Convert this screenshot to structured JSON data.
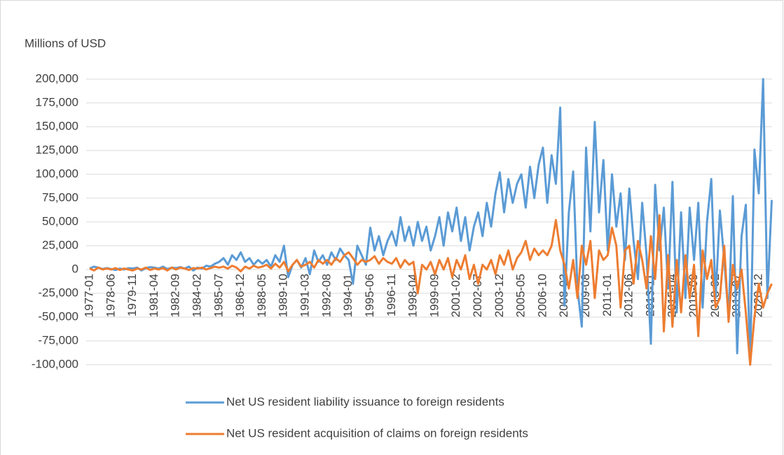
{
  "chart_data": {
    "type": "line",
    "y_axis_label": "Millions of USD",
    "categories": [
      "1977-01",
      null,
      null,
      null,
      null,
      "1978-06",
      null,
      null,
      null,
      null,
      "1979-11",
      null,
      null,
      null,
      null,
      "1981-04",
      null,
      null,
      null,
      null,
      "1982-09",
      null,
      null,
      null,
      null,
      "1984-02",
      null,
      null,
      null,
      null,
      "1985-07",
      null,
      null,
      null,
      null,
      "1986-12",
      null,
      null,
      null,
      null,
      "1988-05",
      null,
      null,
      null,
      null,
      "1989-10",
      null,
      null,
      null,
      null,
      "1991-03",
      null,
      null,
      null,
      null,
      "1992-08",
      null,
      null,
      null,
      null,
      "1994-01",
      null,
      null,
      null,
      null,
      "1995-06",
      null,
      null,
      null,
      null,
      "1996-11",
      null,
      null,
      null,
      null,
      "1998-04",
      null,
      null,
      null,
      null,
      "1999-09",
      null,
      null,
      null,
      null,
      "2001-02",
      null,
      null,
      null,
      null,
      "2002-07",
      null,
      null,
      null,
      null,
      "2003-12",
      null,
      null,
      null,
      null,
      "2005-05",
      null,
      null,
      null,
      null,
      "2006-10",
      null,
      null,
      null,
      null,
      "2008-03",
      null,
      null,
      null,
      null,
      "2009-08",
      null,
      null,
      null,
      null,
      "2011-01",
      null,
      null,
      null,
      null,
      "2012-06",
      null,
      null,
      null,
      null,
      "2013-11",
      null,
      null,
      null,
      null,
      "2015-04",
      null,
      null,
      null,
      null,
      "2016-09",
      null,
      null,
      null,
      null,
      "2018-02",
      null,
      null,
      null,
      null,
      "2019-07",
      null,
      null,
      null,
      null,
      "2020-12",
      null,
      null,
      null
    ],
    "series": [
      {
        "name": "Net US resident liability issuance to foreign residents",
        "color": "#5b9bd5",
        "values": [
          1000,
          3000,
          2000,
          500,
          1500,
          500,
          -500,
          1000,
          0,
          1500,
          1000,
          2000,
          -1000,
          1500,
          2500,
          2000,
          1000,
          3000,
          500,
          2000,
          1500,
          2500,
          1000,
          3000,
          -1000,
          2000,
          1000,
          4000,
          3000,
          6000,
          8000,
          12000,
          5000,
          15000,
          10000,
          18000,
          8000,
          12000,
          5000,
          10000,
          6000,
          10000,
          3000,
          15000,
          8000,
          25000,
          -8000,
          5000,
          10000,
          2000,
          12000,
          -5000,
          20000,
          8000,
          15000,
          5000,
          18000,
          10000,
          22000,
          15000,
          10000,
          -15000,
          25000,
          15000,
          5000,
          44000,
          20000,
          35000,
          15000,
          30000,
          40000,
          25000,
          55000,
          30000,
          45000,
          25000,
          50000,
          30000,
          45000,
          20000,
          35000,
          55000,
          25000,
          60000,
          40000,
          65000,
          30000,
          55000,
          20000,
          45000,
          60000,
          35000,
          70000,
          45000,
          80000,
          102000,
          60000,
          95000,
          70000,
          90000,
          100000,
          65000,
          108000,
          75000,
          110000,
          128000,
          70000,
          120000,
          90000,
          170000,
          -38000,
          60000,
          103000,
          -20000,
          -60000,
          128000,
          40000,
          155000,
          60000,
          115000,
          20000,
          100000,
          45000,
          80000,
          10000,
          85000,
          30000,
          -10000,
          70000,
          15000,
          -78000,
          89000,
          20000,
          65000,
          -20000,
          92000,
          -45000,
          60000,
          -30000,
          65000,
          10000,
          70000,
          -40000,
          50000,
          95000,
          -30000,
          62000,
          10000,
          -50000,
          77000,
          -88000,
          35000,
          68000,
          -100000,
          126000,
          80000,
          200000,
          -30000,
          73000
        ]
      },
      {
        "name": "Net US resident acquisition of claims on foreign residents",
        "color": "#ed7d31",
        "values": [
          1000,
          -1000,
          2000,
          0,
          1000,
          0,
          1500,
          -500,
          1000,
          0,
          -1000,
          1000,
          0,
          2000,
          -500,
          1000,
          0,
          1500,
          -1000,
          2000,
          0,
          2000,
          1000,
          -500,
          1500,
          1000,
          2000,
          0,
          1500,
          3000,
          2000,
          3000,
          1000,
          4000,
          2000,
          -2000,
          3000,
          1000,
          4000,
          2000,
          3000,
          5000,
          1000,
          6000,
          2000,
          8000,
          -2000,
          5000,
          10000,
          3000,
          5000,
          8000,
          2000,
          10000,
          6000,
          10000,
          5000,
          12000,
          8000,
          15000,
          18000,
          12000,
          5000,
          10000,
          8000,
          10000,
          14000,
          6000,
          12000,
          8000,
          6000,
          12000,
          2000,
          10000,
          5000,
          8000,
          -25000,
          5000,
          0,
          8000,
          -5000,
          10000,
          0,
          12000,
          -8000,
          10000,
          0,
          15000,
          -10000,
          5000,
          -15000,
          5000,
          0,
          10000,
          -5000,
          15000,
          5000,
          20000,
          0,
          12000,
          18000,
          30000,
          10000,
          22000,
          15000,
          20000,
          15000,
          25000,
          52000,
          20000,
          5000,
          -20000,
          10000,
          -30000,
          25000,
          5000,
          30000,
          -30000,
          20000,
          10000,
          15000,
          44000,
          25000,
          -40000,
          20000,
          25000,
          -15000,
          30000,
          10000,
          -20000,
          35000,
          -10000,
          57000,
          -65000,
          15000,
          -60000,
          10000,
          -45000,
          15000,
          -30000,
          5000,
          -70000,
          20000,
          -10000,
          10000,
          -40000,
          -30000,
          25000,
          -55000,
          5000,
          -20000,
          0,
          -45000,
          -100000,
          -50000,
          -15000,
          -40000,
          -25000,
          -15000
        ]
      }
    ],
    "ylim": [
      -100000,
      200000
    ],
    "yticks": [
      {
        "value": -100000,
        "label": "-100,000"
      },
      {
        "value": -75000,
        "label": "-75,000"
      },
      {
        "value": -50000,
        "label": "-50,000"
      },
      {
        "value": -25000,
        "label": "-25,000"
      },
      0,
      {
        "value": 25000,
        "label": "25,000"
      },
      {
        "value": 50000,
        "label": "50,000"
      },
      {
        "value": 75000,
        "label": "75,000"
      },
      {
        "value": 100000,
        "label": "100,000"
      },
      {
        "value": 125000,
        "label": "125,000"
      },
      {
        "value": 150000,
        "label": "150,000"
      },
      {
        "value": 175000,
        "label": "175,000"
      },
      {
        "value": 200000,
        "label": "200,000"
      }
    ],
    "grid": true,
    "legend": "bottom"
  }
}
